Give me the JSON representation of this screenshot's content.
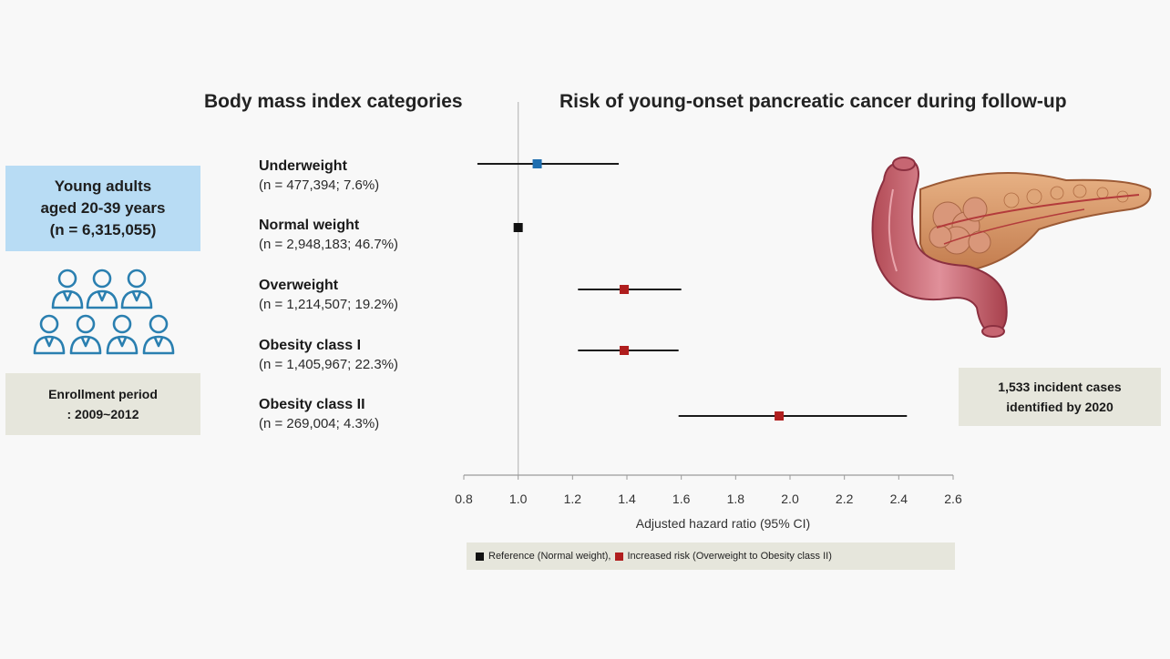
{
  "headings": {
    "bmi": "Body mass index categories",
    "risk": "Risk of young-onset pancreatic cancer during follow-up"
  },
  "cohort": {
    "line1": "Young adults",
    "line2": "aged 20-39 years",
    "line3": "(n = 6,315,055)"
  },
  "enrollment": {
    "line1": "Enrollment period",
    "line2": ": 2009~2012"
  },
  "cases": {
    "line1": "1,533 incident cases",
    "line2": "identified by 2020"
  },
  "categories": [
    {
      "name": "Underweight",
      "detail": "(n = 477,394; 7.6%)"
    },
    {
      "name": "Normal weight",
      "detail": "(n = 2,948,183; 46.7%)"
    },
    {
      "name": "Overweight",
      "detail": "(n = 1,214,507; 19.2%)"
    },
    {
      "name": "Obesity class I",
      "detail": "(n = 1,405,967; 22.3%)"
    },
    {
      "name": "Obesity class II",
      "detail": "(n = 269,004; 4.3%)"
    }
  ],
  "legend": {
    "reference_label": "Reference (Normal weight),",
    "increased_label": "Increased risk (Overweight to Obesity class II)"
  },
  "icons": {
    "people": "people-group-icon",
    "organ": "pancreas-illustration"
  },
  "colors": {
    "underweight": "#1f6fb0",
    "reference": "#111111",
    "increased": "#b01e1e",
    "cohort_box": "#b8dcf4",
    "info_box": "#e6e6dc"
  },
  "chart_data": {
    "type": "forest",
    "xlabel": "Adjusted hazard ratio (95% CI)",
    "xlim": [
      0.8,
      2.6
    ],
    "xticks": [
      0.8,
      1.0,
      1.2,
      1.4,
      1.6,
      1.8,
      2.0,
      2.2,
      2.4,
      2.6
    ],
    "xtick_labels": [
      "0.8",
      "1.0",
      "1.2",
      "1.4",
      "1.6",
      "1.8",
      "2.0",
      "2.2",
      "2.4",
      "2.6"
    ],
    "reference_line": 1.0,
    "rows": [
      {
        "category": "Underweight",
        "hr": 1.07,
        "lower": 0.85,
        "upper": 1.37,
        "group": "underweight"
      },
      {
        "category": "Normal weight",
        "hr": 1.0,
        "lower": null,
        "upper": null,
        "group": "reference"
      },
      {
        "category": "Overweight",
        "hr": 1.39,
        "lower": 1.22,
        "upper": 1.6,
        "group": "increased"
      },
      {
        "category": "Obesity class I",
        "hr": 1.39,
        "lower": 1.22,
        "upper": 1.59,
        "group": "increased"
      },
      {
        "category": "Obesity class II",
        "hr": 1.96,
        "lower": 1.59,
        "upper": 2.43,
        "group": "increased"
      }
    ]
  }
}
